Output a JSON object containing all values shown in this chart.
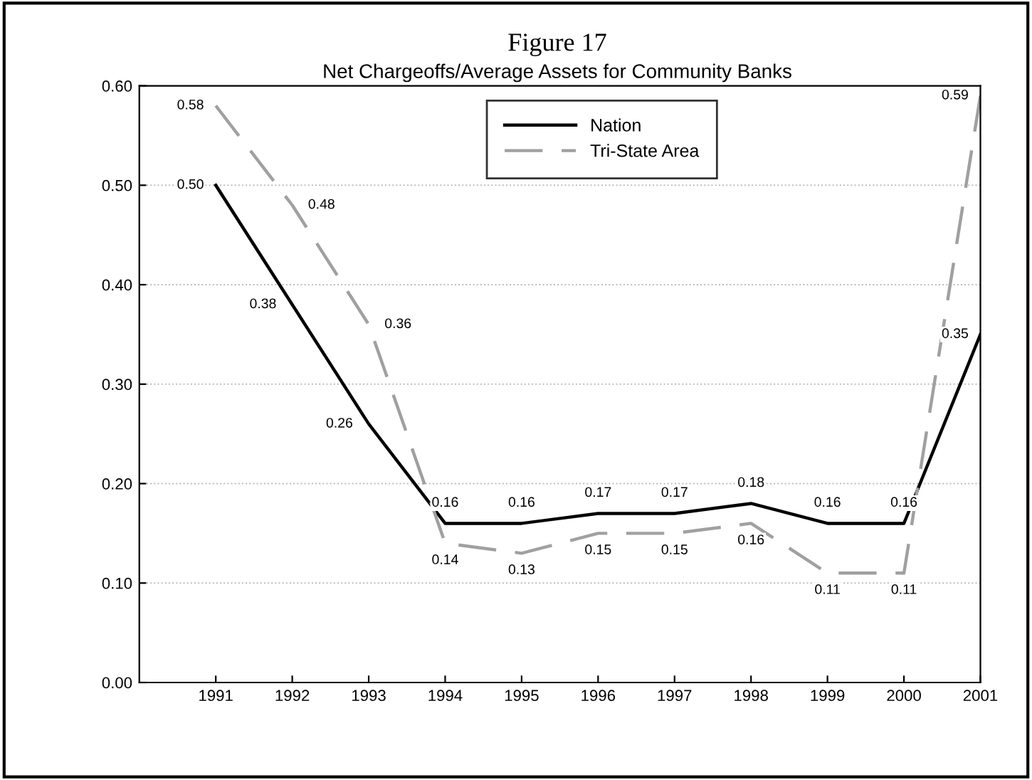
{
  "chart_data": {
    "type": "line",
    "title": "Figure 17",
    "subtitle": "Net Chargeoffs/Average Assets for Community Banks",
    "x": [
      1991,
      1992,
      1993,
      1994,
      1995,
      1996,
      1997,
      1998,
      1999,
      2000,
      2001
    ],
    "series": [
      {
        "name": "Nation",
        "color": "#000000",
        "line_style": "solid",
        "values": [
          0.5,
          0.38,
          0.26,
          0.16,
          0.16,
          0.17,
          0.17,
          0.18,
          0.16,
          0.16,
          0.35
        ],
        "value_labels": [
          "0.50",
          "0.38",
          "0.26",
          "0.16",
          "0.16",
          "0.17",
          "0.17",
          "0.18",
          "0.16",
          "0.16",
          "0.35"
        ]
      },
      {
        "name": "Tri-State Area",
        "color": "#a0a0a0",
        "line_style": "dashed",
        "values": [
          0.58,
          0.48,
          0.36,
          0.14,
          0.13,
          0.15,
          0.15,
          0.16,
          0.11,
          0.11,
          0.59
        ],
        "value_labels": [
          "0.58",
          "0.48",
          "0.36",
          "0.14",
          "0.13",
          "0.15",
          "0.15",
          "0.16",
          "0.11",
          "0.11",
          "0.59"
        ]
      }
    ],
    "xlim": [
      1990,
      2001
    ],
    "xticks": [
      1991,
      1992,
      1993,
      1994,
      1995,
      1996,
      1997,
      1998,
      1999,
      2000,
      2001
    ],
    "ylim": [
      0,
      0.6
    ],
    "yticks": [
      {
        "value": 0,
        "label": "0.00"
      },
      {
        "value": 0.1,
        "label": "0.10"
      },
      {
        "value": 0.2,
        "label": "0.20"
      },
      {
        "value": 0.3,
        "label": "0.30"
      },
      {
        "value": 0.4,
        "label": "0.40"
      },
      {
        "value": 0.5,
        "label": "0.50"
      },
      {
        "value": 0.6,
        "label": "0.60"
      }
    ],
    "grid": "y",
    "legend": "top center",
    "marker": "none"
  }
}
